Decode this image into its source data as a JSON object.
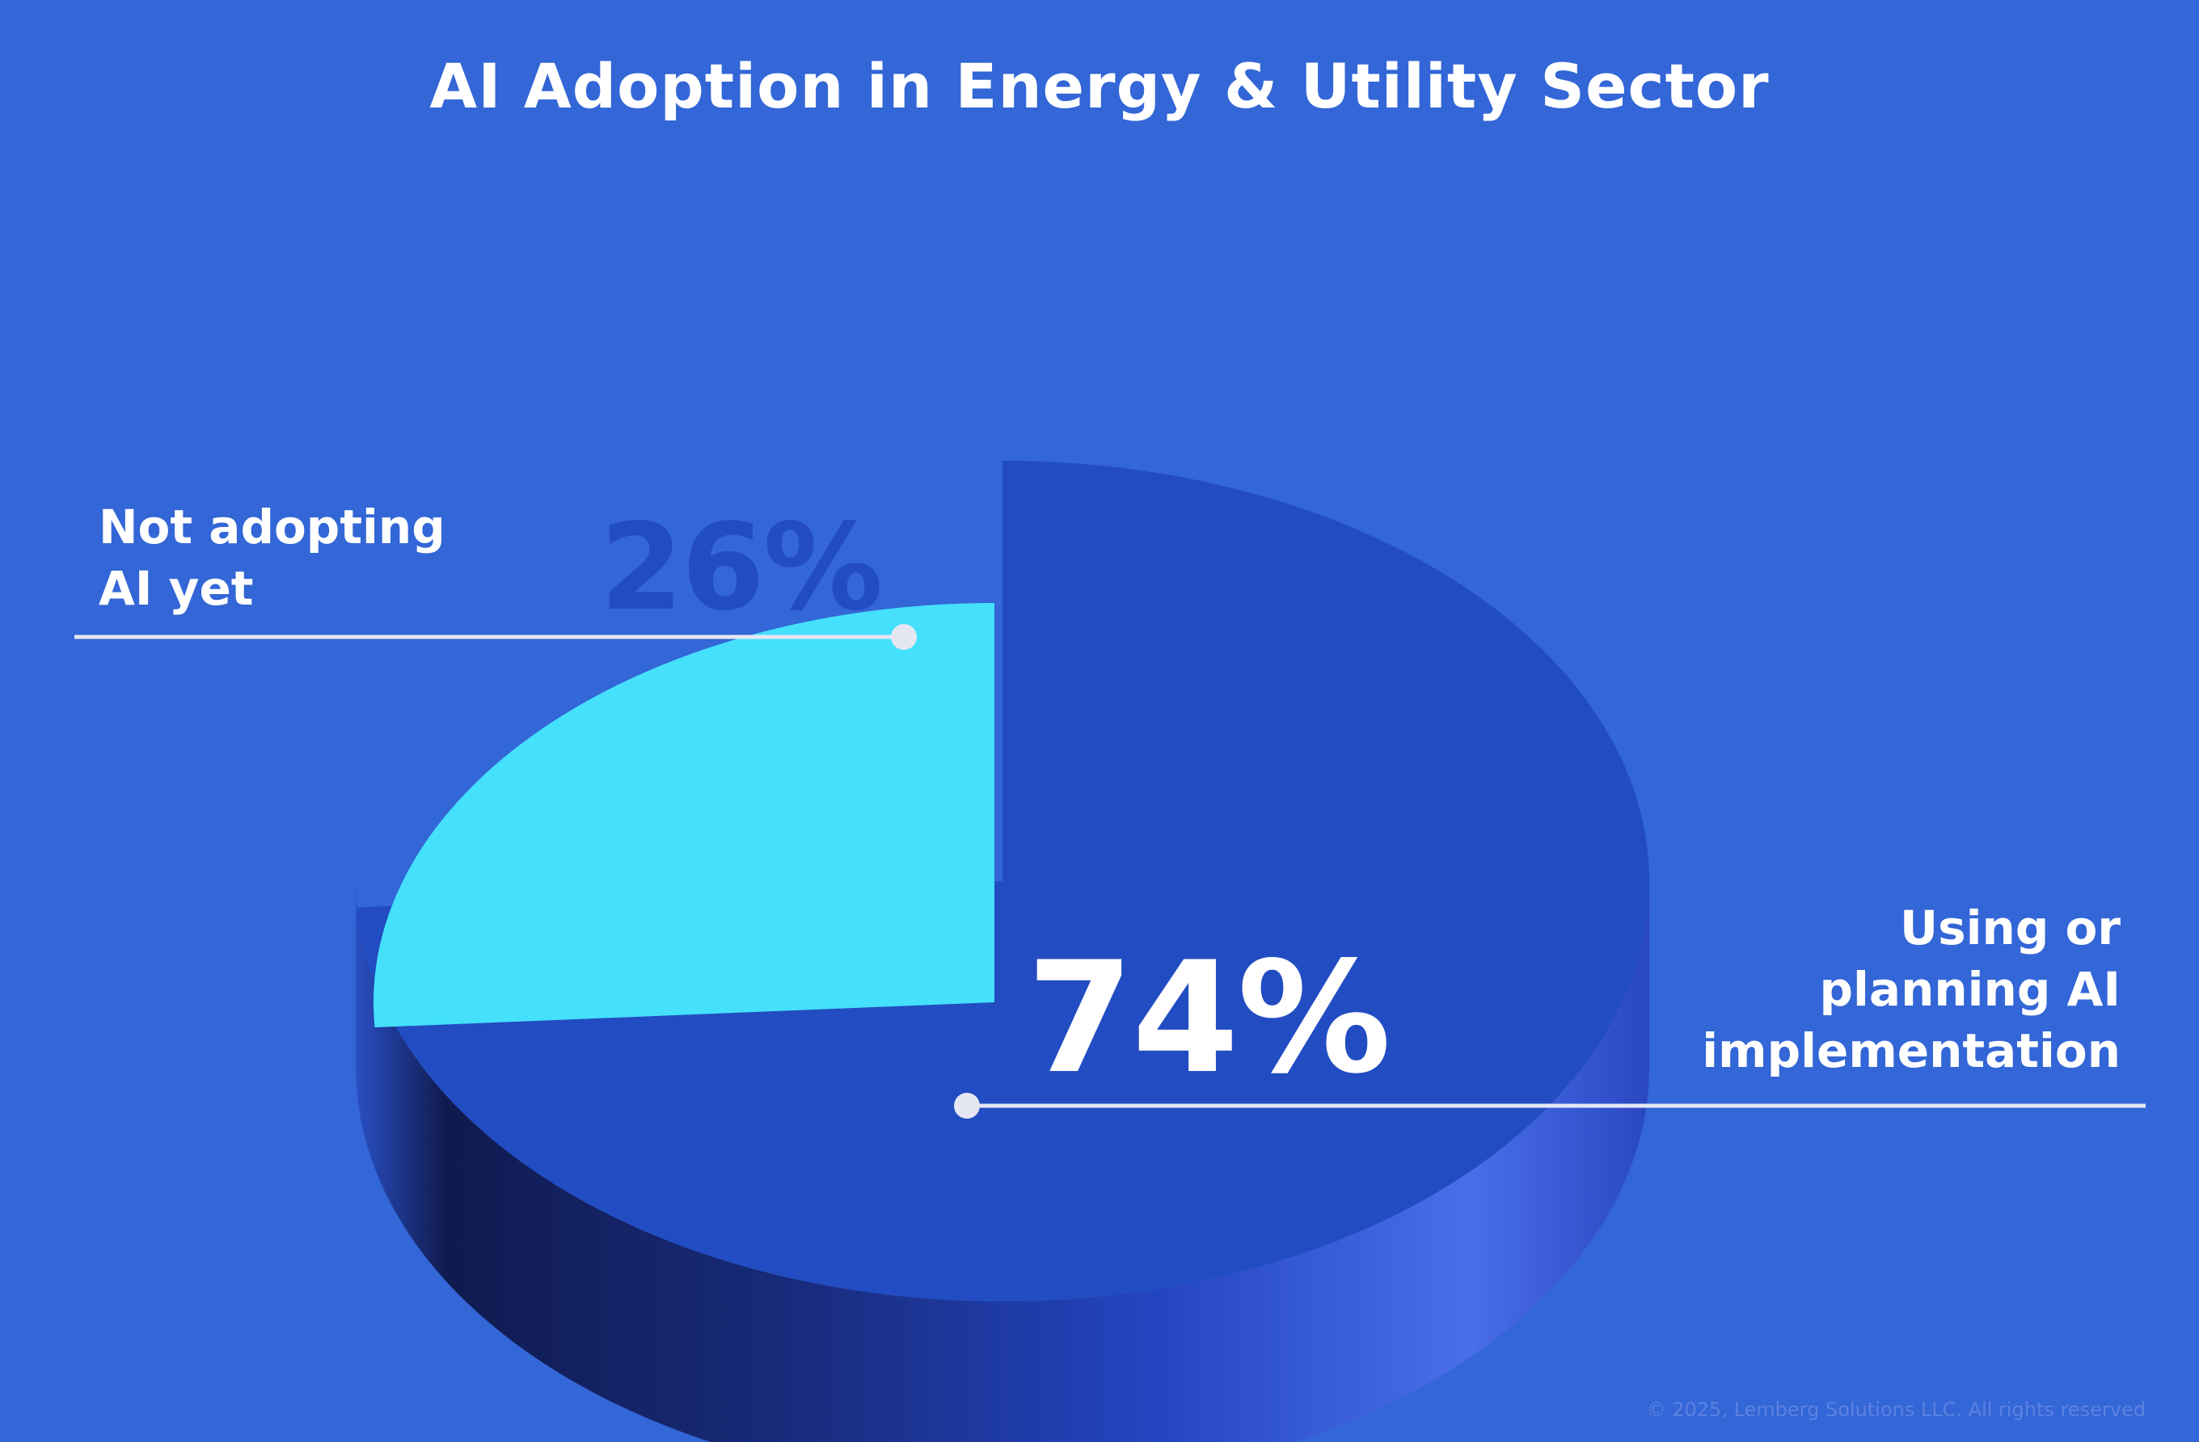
{
  "title": "AI Adoption in Energy & Utility Sector",
  "copyright": "© 2025, Lemberg Solutions LLC. All rights reserved",
  "colors": {
    "background": "#3366D6",
    "slice_main": "#224DC2",
    "slice_minor": "#45E0FC",
    "label_text": "#FFFFFF",
    "minor_value_text": "#224DC2",
    "leader_line": "#E4E7F2"
  },
  "chart_data": {
    "type": "pie",
    "title": "AI Adoption in Energy & Utility Sector",
    "slices": [
      {
        "label": "Using or planning AI implementation",
        "value": 74,
        "display": "74%",
        "color": "#224DC2"
      },
      {
        "label": "Not adopting AI yet",
        "value": 26,
        "display": "26%",
        "color": "#45E0FC"
      }
    ]
  }
}
